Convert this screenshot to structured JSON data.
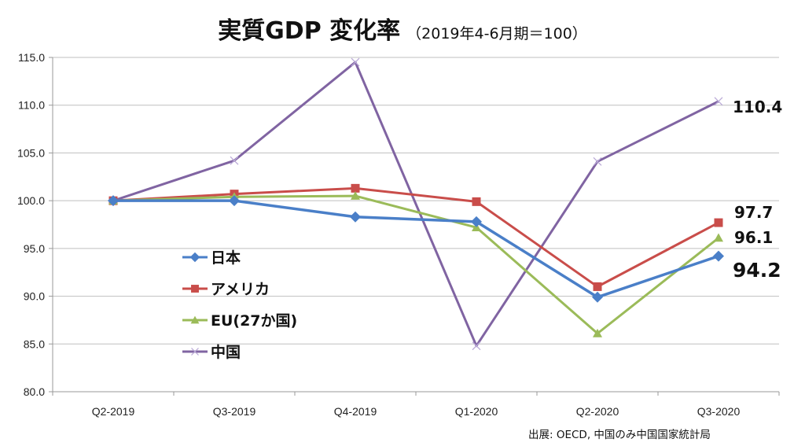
{
  "chart_data": {
    "type": "line",
    "title": "実質GDP 変化率",
    "subtitle": "（2019年4-6月期＝100）",
    "xlabel": "",
    "ylabel": "",
    "categories": [
      "Q2-2019",
      "Q3-2019",
      "Q4-2019",
      "Q1-2020",
      "Q2-2020",
      "Q3-2020"
    ],
    "ylim": [
      80,
      115
    ],
    "yticks": [
      80,
      85,
      90,
      95,
      100,
      105,
      110,
      115
    ],
    "ytick_labels": [
      "80.0",
      "85.0",
      "90.0",
      "95.0",
      "100.0",
      "105.0",
      "110.0",
      "115.0"
    ],
    "grid": true,
    "legend_position": "center-left",
    "series": [
      {
        "name": "日本",
        "color": "#4a7fc8",
        "marker": "diamond",
        "values": [
          100.0,
          100.0,
          98.3,
          97.8,
          89.9,
          94.2
        ],
        "end_label": "94.2"
      },
      {
        "name": "アメリカ",
        "color": "#c94d4a",
        "marker": "square",
        "values": [
          100.0,
          100.7,
          101.3,
          99.9,
          91.0,
          97.7
        ],
        "end_label": "97.7"
      },
      {
        "name": "EU(27か国)",
        "color": "#9bbb59",
        "marker": "triangle",
        "values": [
          100.0,
          100.4,
          100.5,
          97.2,
          86.1,
          96.1
        ],
        "end_label": "96.1"
      },
      {
        "name": "中国",
        "color": "#8064a2",
        "marker": "x",
        "values": [
          100.0,
          104.2,
          114.5,
          84.8,
          104.1,
          110.4
        ],
        "end_label": "110.4"
      }
    ],
    "annotations": [
      "110.4",
      "97.7",
      "96.1",
      "94.2"
    ],
    "source": "出展: OECD, 中国のみ中国国家統計局"
  }
}
